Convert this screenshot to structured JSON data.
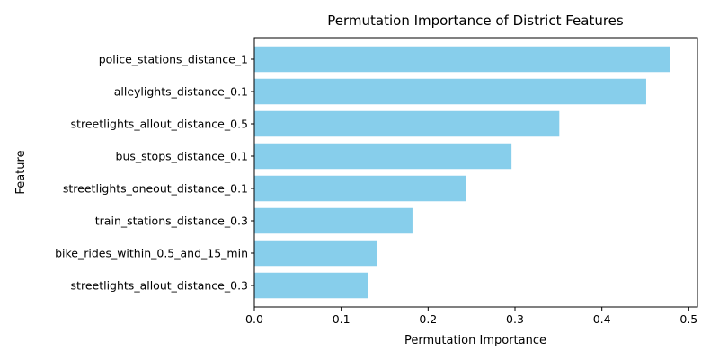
{
  "chart_data": {
    "type": "bar",
    "orientation": "horizontal",
    "title": "Permutation Importance of District Features",
    "xlabel": "Permutation Importance",
    "ylabel": "Feature",
    "categories": [
      "police_stations_distance_1",
      "alleylights_distance_0.1",
      "streetlights_allout_distance_0.5",
      "bus_stops_distance_0.1",
      "streetlights_oneout_distance_0.1",
      "train_stations_distance_0.3",
      "bike_rides_within_0.5_and_15_min",
      "streetlights_allout_distance_0.3"
    ],
    "values": [
      0.478,
      0.451,
      0.351,
      0.296,
      0.244,
      0.182,
      0.141,
      0.131
    ],
    "xlim": [
      0,
      0.51
    ],
    "xticks": [
      "0.0",
      "0.1",
      "0.2",
      "0.3",
      "0.4",
      "0.5"
    ],
    "bar_color": "#87CEEB",
    "grid": false
  }
}
